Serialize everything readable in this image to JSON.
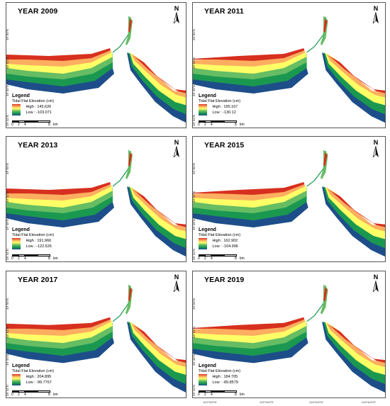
{
  "panels": [
    {
      "year": "YEAR 2009",
      "legend_title": "Legend",
      "legend_sub": "Tidal Flat Elevation (cm)",
      "high": "High : 145.626",
      "low": "Low : -103.071"
    },
    {
      "year": "YEAR 2011",
      "legend_title": "Legend",
      "legend_sub": "Tidal Flat Elevation (cm)",
      "high": "High : 195.167",
      "low": "Low : -130.12"
    },
    {
      "year": "YEAR 2013",
      "legend_title": "Legend",
      "legend_sub": "Tidal Flat Elevation (cm)",
      "high": "High : 191.966",
      "low": "Low : -122.526"
    },
    {
      "year": "YEAR 2015",
      "legend_title": "Legend",
      "legend_sub": "Tidal Flat Elevation (cm)",
      "high": "High : 162.902",
      "low": "Low : -104.996"
    },
    {
      "year": "YEAR 2017",
      "legend_title": "Legend",
      "legend_sub": "Tidal Flat Elevation (cm)",
      "high": "High : 204.895",
      "low": "Low : -99.7767"
    },
    {
      "year": "YEAR 2019",
      "legend_title": "Legend",
      "legend_sub": "Tidal Flat Elevation (cm)",
      "high": "High : 184.705",
      "low": "Low : -89.8579"
    }
  ],
  "north_label": "N",
  "scale": {
    "ticks": [
      "0",
      "2",
      "4",
      "8"
    ],
    "unit": "km"
  },
  "lat_labels": [
    "49°56'N",
    "49°52'N",
    "49°48'N",
    "49°44'N"
  ],
  "lon_labels": [
    "124°30'0\"E",
    "124°34'0\"E",
    "124°40'0\"E",
    "124°44'0\"E"
  ],
  "colors": {
    "high": "#d7301f",
    "mid_high": "#fdae61",
    "mid": "#ffff66",
    "mid_low": "#66bd63",
    "low_green": "#1a9850",
    "low": "#1d4e89"
  }
}
